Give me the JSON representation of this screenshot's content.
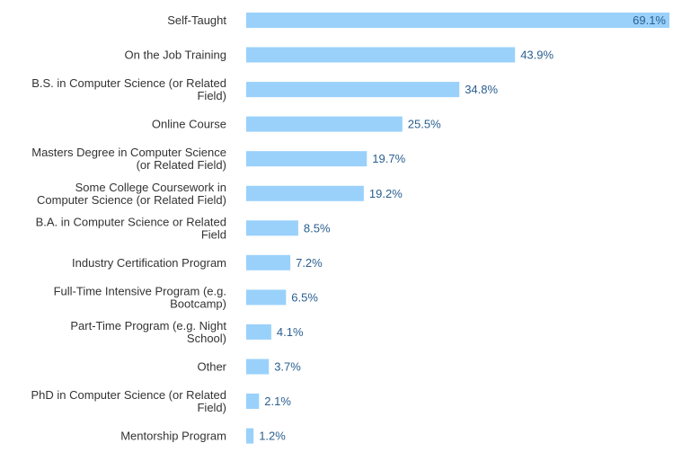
{
  "chart_data": {
    "type": "bar",
    "orientation": "horizontal",
    "categories": [
      [
        "Self-Taught"
      ],
      [
        "On the Job Training"
      ],
      [
        "B.S. in Computer Science (or Related",
        "Field)"
      ],
      [
        "Online Course"
      ],
      [
        "Masters Degree in Computer Science",
        "(or Related Field)"
      ],
      [
        "Some College Coursework in",
        "Computer Science (or Related Field)"
      ],
      [
        "B.A. in Computer Science or Related",
        "Field"
      ],
      [
        "Industry Certification Program"
      ],
      [
        "Full-Time Intensive Program (e.g.",
        "Bootcamp)"
      ],
      [
        "Part-Time Program (e.g. Night",
        "School)"
      ],
      [
        "Other"
      ],
      [
        "PhD in Computer Science (or Related",
        "Field)"
      ],
      [
        "Mentorship Program"
      ]
    ],
    "values": [
      69.1,
      43.9,
      34.8,
      25.5,
      19.7,
      19.2,
      8.5,
      7.2,
      6.5,
      4.1,
      3.7,
      2.1,
      1.2
    ],
    "value_labels": [
      "69.1%",
      "43.9%",
      "34.8%",
      "25.5%",
      "19.7%",
      "19.2%",
      "8.5%",
      "7.2%",
      "6.5%",
      "4.1%",
      "3.7%",
      "2.1%",
      "1.2%"
    ],
    "xlim": [
      0,
      69.1
    ],
    "grid": false,
    "colors": {
      "bar": "#99d1fb",
      "value_text": "#2a5f8f",
      "label_text": "#333333"
    }
  }
}
